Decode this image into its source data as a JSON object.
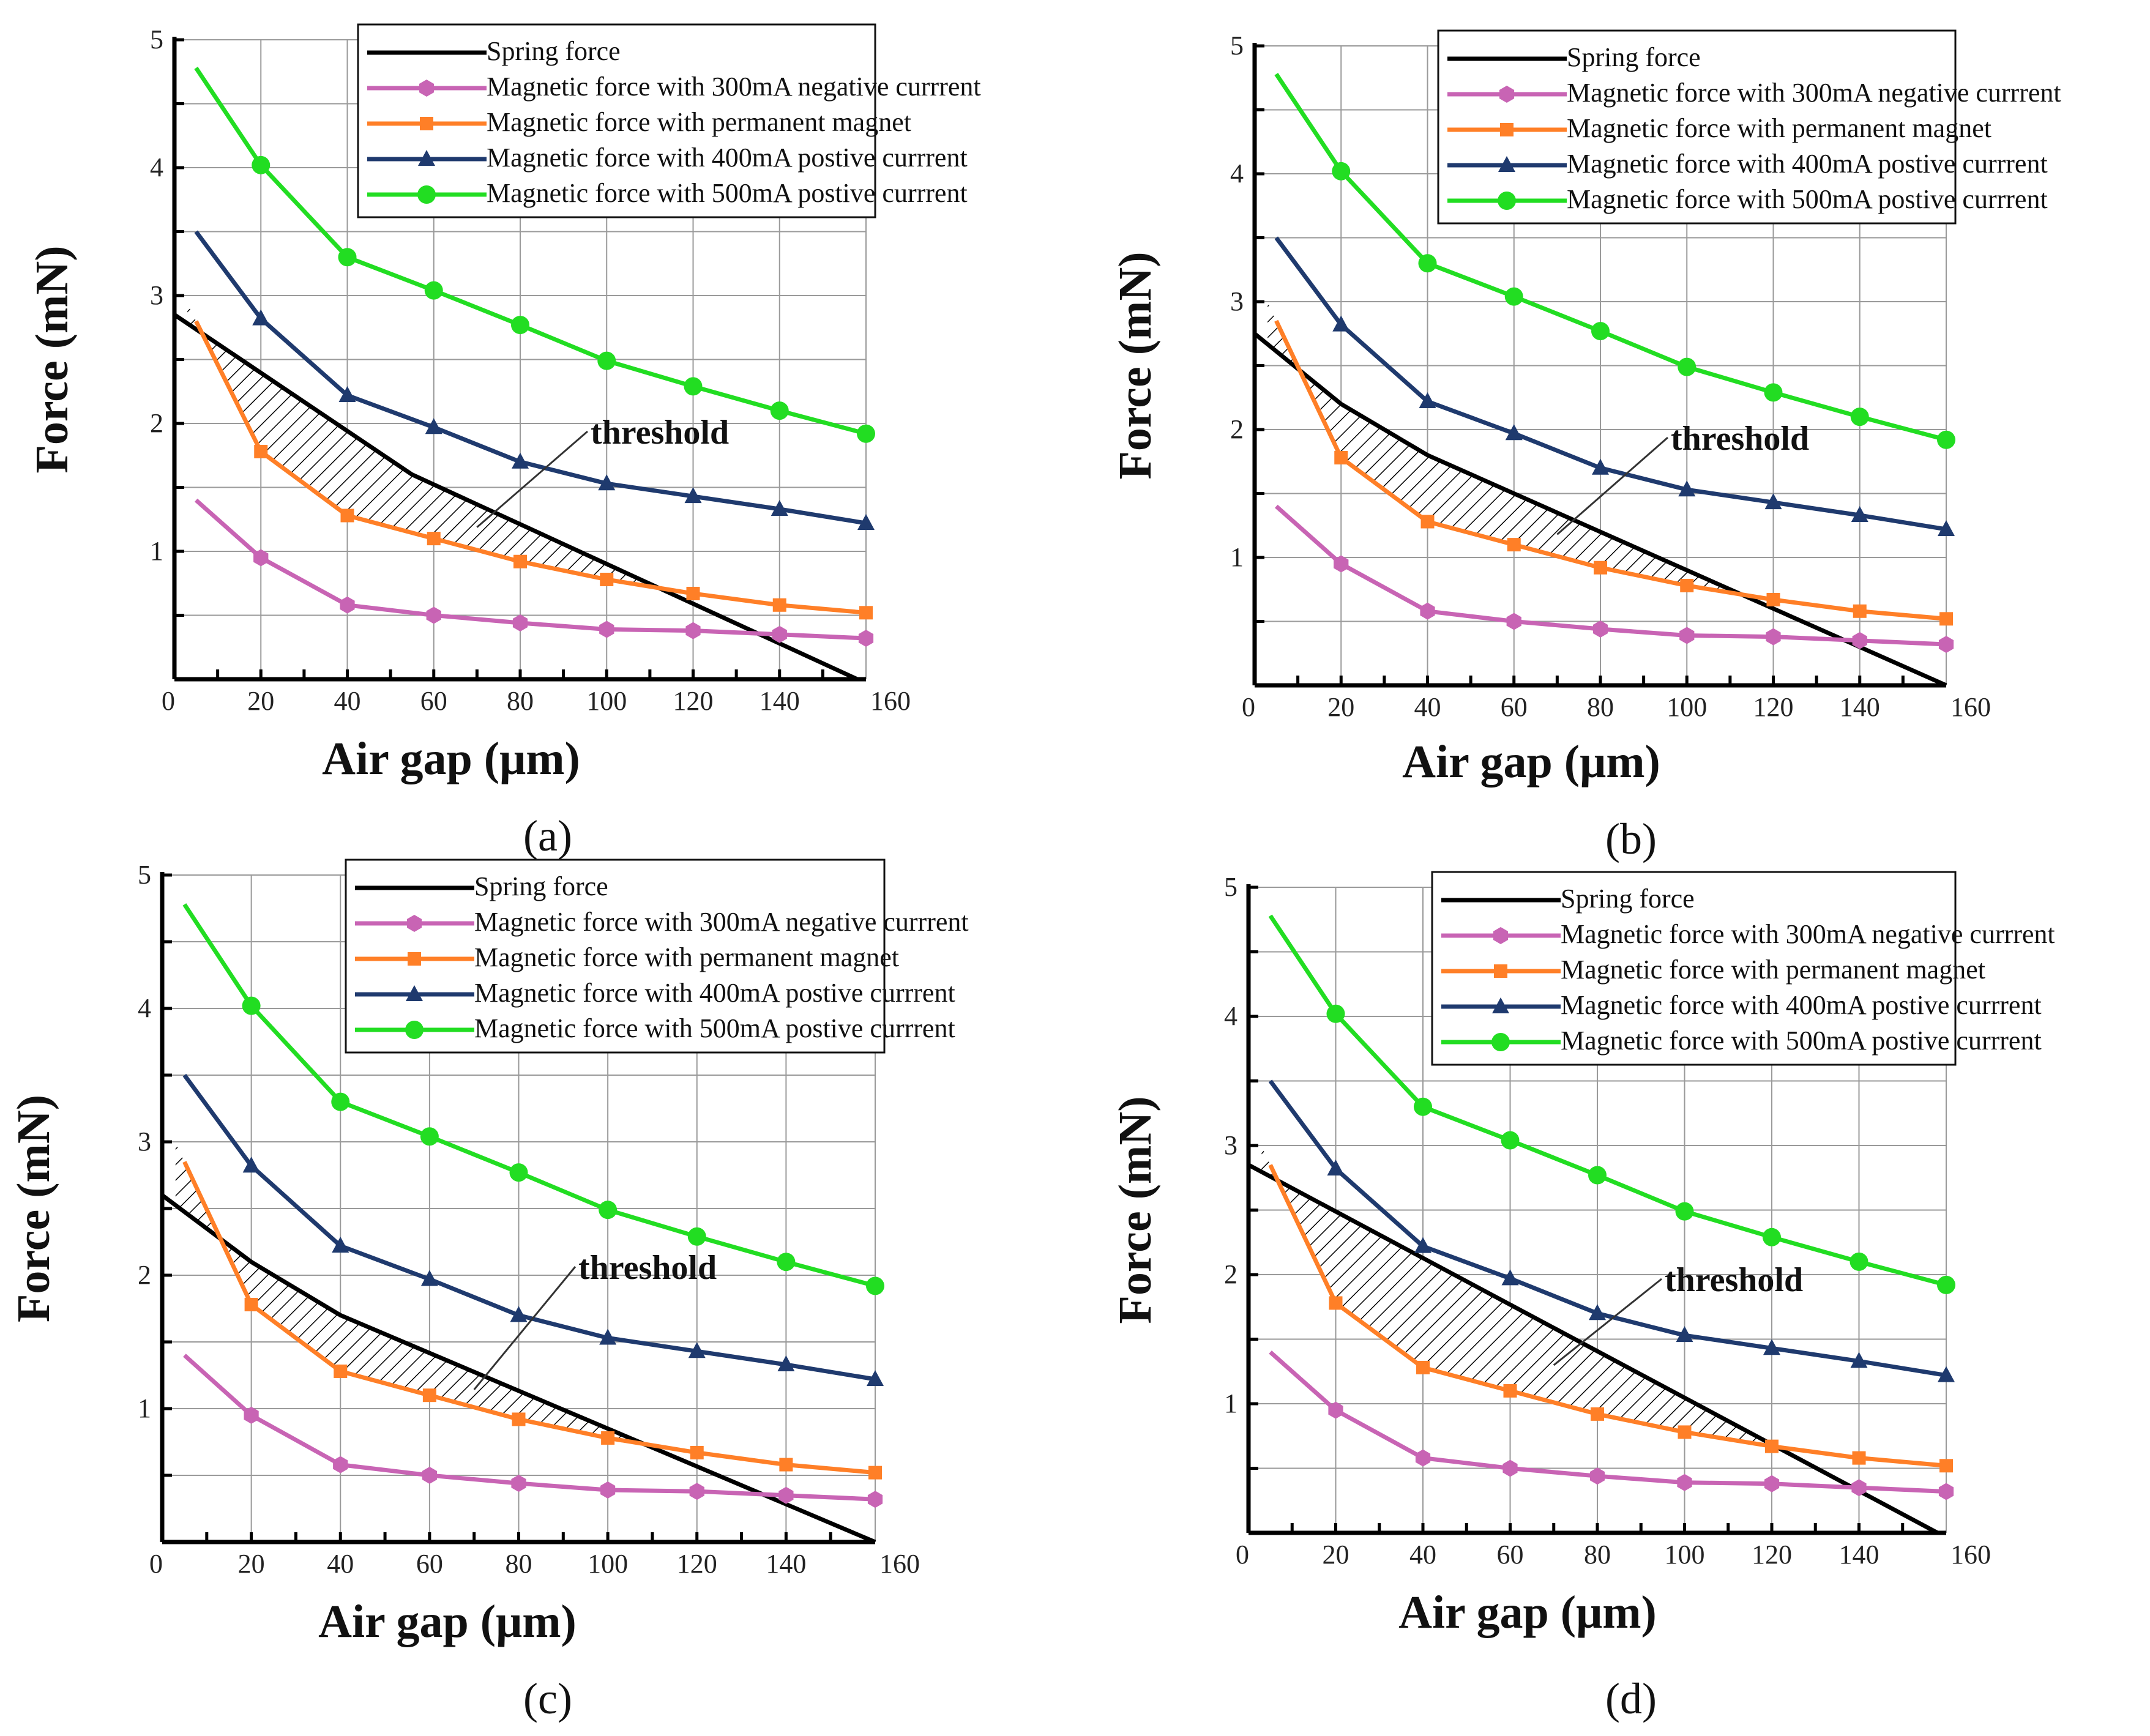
{
  "figure": {
    "panels": [
      "a",
      "b",
      "c",
      "d"
    ]
  },
  "chart_data": [
    {
      "panel": "(a)",
      "type": "line",
      "xlabel": "Air gap (μm)",
      "ylabel": "Force (mN)",
      "xlim": [
        0,
        160
      ],
      "ylim": [
        0,
        5
      ],
      "xticks": [
        0,
        20,
        40,
        60,
        80,
        100,
        120,
        140,
        160
      ],
      "yticks": [
        1,
        2,
        3,
        4,
        5
      ],
      "grid": true,
      "legend_position": "top-right",
      "annotation": "threshold",
      "series": [
        {
          "name": "Spring force",
          "color": "#000000",
          "marker": "none",
          "x": [
            0,
            55,
            158
          ],
          "y": [
            2.85,
            1.6,
            0.0
          ]
        },
        {
          "name": "Magnetic force with 300mA negative currrent",
          "color": "#C864B4",
          "marker": "hexagon",
          "x": [
            5,
            20,
            40,
            60,
            80,
            100,
            120,
            140,
            160
          ],
          "y": [
            1.4,
            0.95,
            0.58,
            0.5,
            0.44,
            0.39,
            0.38,
            0.35,
            0.32
          ]
        },
        {
          "name": "Magnetic force with permanent magnet",
          "color": "#FF7F27",
          "marker": "square",
          "x": [
            5,
            20,
            40,
            60,
            80,
            100,
            120,
            140,
            160
          ],
          "y": [
            2.8,
            1.78,
            1.28,
            1.1,
            0.92,
            0.78,
            0.67,
            0.58,
            0.52
          ]
        },
        {
          "name": "Magnetic force with 400mA postive currrent",
          "color": "#1F3A6E",
          "marker": "triangle",
          "x": [
            5,
            20,
            40,
            60,
            80,
            100,
            120,
            140,
            160
          ],
          "y": [
            3.5,
            2.82,
            2.22,
            1.97,
            1.7,
            1.53,
            1.43,
            1.33,
            1.22
          ]
        },
        {
          "name": "Magnetic force with 500mA postive currrent",
          "color": "#22DD22",
          "marker": "circle",
          "x": [
            5,
            20,
            40,
            60,
            80,
            100,
            120,
            140,
            160
          ],
          "y": [
            4.78,
            4.02,
            3.3,
            3.04,
            2.77,
            2.49,
            2.29,
            2.1,
            1.92
          ]
        }
      ]
    },
    {
      "panel": "(b)",
      "type": "line",
      "xlabel": "Air gap (μm)",
      "ylabel": "Force (mN)",
      "xlim": [
        0,
        160
      ],
      "ylim": [
        0,
        5
      ],
      "xticks": [
        0,
        20,
        40,
        60,
        80,
        100,
        120,
        140,
        160
      ],
      "yticks": [
        1,
        2,
        3,
        4,
        5
      ],
      "grid": true,
      "legend_position": "top-right",
      "annotation": "threshold",
      "series": [
        {
          "name": "Spring force",
          "color": "#000000",
          "marker": "none",
          "x": [
            0,
            20,
            40,
            160
          ],
          "y": [
            2.75,
            2.2,
            1.8,
            0.0
          ]
        },
        {
          "name": "Magnetic force with 300mA negative currrent",
          "color": "#C864B4",
          "marker": "hexagon",
          "x": [
            5,
            20,
            40,
            60,
            80,
            100,
            120,
            140,
            160
          ],
          "y": [
            1.4,
            0.95,
            0.58,
            0.5,
            0.44,
            0.39,
            0.38,
            0.35,
            0.32
          ]
        },
        {
          "name": "Magnetic force with permanent magnet",
          "color": "#FF7F27",
          "marker": "square",
          "x": [
            5,
            20,
            40,
            60,
            80,
            100,
            120,
            140,
            160
          ],
          "y": [
            2.85,
            1.78,
            1.28,
            1.1,
            0.92,
            0.78,
            0.67,
            0.58,
            0.52
          ]
        },
        {
          "name": "Magnetic force with 400mA postive currrent",
          "color": "#1F3A6E",
          "marker": "triangle",
          "x": [
            5,
            20,
            40,
            60,
            80,
            100,
            120,
            140,
            160
          ],
          "y": [
            3.5,
            2.82,
            2.22,
            1.97,
            1.7,
            1.53,
            1.43,
            1.33,
            1.22
          ]
        },
        {
          "name": "Magnetic force with 500mA postive currrent",
          "color": "#22DD22",
          "marker": "circle",
          "x": [
            5,
            20,
            40,
            60,
            80,
            100,
            120,
            140,
            160
          ],
          "y": [
            4.78,
            4.02,
            3.3,
            3.04,
            2.77,
            2.49,
            2.29,
            2.1,
            1.92
          ]
        }
      ]
    },
    {
      "panel": "(c)",
      "type": "line",
      "xlabel": "Air gap (μm)",
      "ylabel": "Force (mN)",
      "xlim": [
        0,
        160
      ],
      "ylim": [
        0,
        5
      ],
      "xticks": [
        0,
        20,
        40,
        60,
        80,
        100,
        120,
        140,
        160
      ],
      "yticks": [
        1,
        2,
        3,
        4,
        5
      ],
      "grid": true,
      "legend_position": "top-right",
      "annotation": "threshold",
      "series": [
        {
          "name": "Spring force",
          "color": "#000000",
          "marker": "none",
          "x": [
            0,
            20,
            40,
            160
          ],
          "y": [
            2.6,
            2.1,
            1.7,
            0.0
          ]
        },
        {
          "name": "Magnetic force with 300mA negative currrent",
          "color": "#C864B4",
          "marker": "hexagon",
          "x": [
            5,
            20,
            40,
            60,
            80,
            100,
            120,
            140,
            160
          ],
          "y": [
            1.4,
            0.95,
            0.58,
            0.5,
            0.44,
            0.39,
            0.38,
            0.35,
            0.32
          ]
        },
        {
          "name": "Magnetic force with permanent magnet",
          "color": "#FF7F27",
          "marker": "square",
          "x": [
            5,
            20,
            40,
            60,
            80,
            100,
            120,
            140,
            160
          ],
          "y": [
            2.85,
            1.78,
            1.28,
            1.1,
            0.92,
            0.78,
            0.67,
            0.58,
            0.52
          ]
        },
        {
          "name": "Magnetic force with 400mA postive currrent",
          "color": "#1F3A6E",
          "marker": "triangle",
          "x": [
            5,
            20,
            40,
            60,
            80,
            100,
            120,
            140,
            160
          ],
          "y": [
            3.5,
            2.82,
            2.22,
            1.97,
            1.7,
            1.53,
            1.43,
            1.33,
            1.22
          ]
        },
        {
          "name": "Magnetic force with 500mA postive currrent",
          "color": "#22DD22",
          "marker": "circle",
          "x": [
            5,
            20,
            40,
            60,
            80,
            100,
            120,
            140,
            160
          ],
          "y": [
            4.78,
            4.02,
            3.3,
            3.04,
            2.77,
            2.49,
            2.29,
            2.1,
            1.92
          ]
        }
      ]
    },
    {
      "panel": "(d)",
      "type": "line",
      "xlabel": "Air gap (μm)",
      "ylabel": "Force (mN)",
      "xlim": [
        0,
        160
      ],
      "ylim": [
        0,
        5
      ],
      "xticks": [
        0,
        20,
        40,
        60,
        80,
        100,
        120,
        140,
        160
      ],
      "yticks": [
        1,
        2,
        3,
        4,
        5
      ],
      "grid": true,
      "legend_position": "top-right",
      "annotation": "threshold",
      "series": [
        {
          "name": "Spring force",
          "color": "#000000",
          "marker": "none",
          "x": [
            0,
            158
          ],
          "y": [
            2.85,
            0.0
          ]
        },
        {
          "name": "Magnetic force with 300mA negative currrent",
          "color": "#C864B4",
          "marker": "hexagon",
          "x": [
            5,
            20,
            40,
            60,
            80,
            100,
            120,
            140,
            160
          ],
          "y": [
            1.4,
            0.95,
            0.58,
            0.5,
            0.44,
            0.39,
            0.38,
            0.35,
            0.32
          ]
        },
        {
          "name": "Magnetic force with permanent magnet",
          "color": "#FF7F27",
          "marker": "square",
          "x": [
            5,
            20,
            40,
            60,
            80,
            100,
            120,
            140,
            160
          ],
          "y": [
            2.85,
            1.78,
            1.28,
            1.1,
            0.92,
            0.78,
            0.67,
            0.58,
            0.52
          ]
        },
        {
          "name": "Magnetic force with 400mA postive currrent",
          "color": "#1F3A6E",
          "marker": "triangle",
          "x": [
            5,
            20,
            40,
            60,
            80,
            100,
            120,
            140,
            160
          ],
          "y": [
            3.5,
            2.82,
            2.22,
            1.97,
            1.7,
            1.53,
            1.43,
            1.33,
            1.22
          ]
        },
        {
          "name": "Magnetic force with 500mA postive currrent",
          "color": "#22DD22",
          "marker": "circle",
          "x": [
            5,
            20,
            40,
            60,
            80,
            100,
            120,
            140,
            160
          ],
          "y": [
            4.78,
            4.02,
            3.3,
            3.04,
            2.77,
            2.49,
            2.29,
            2.1,
            1.92
          ]
        }
      ]
    }
  ]
}
